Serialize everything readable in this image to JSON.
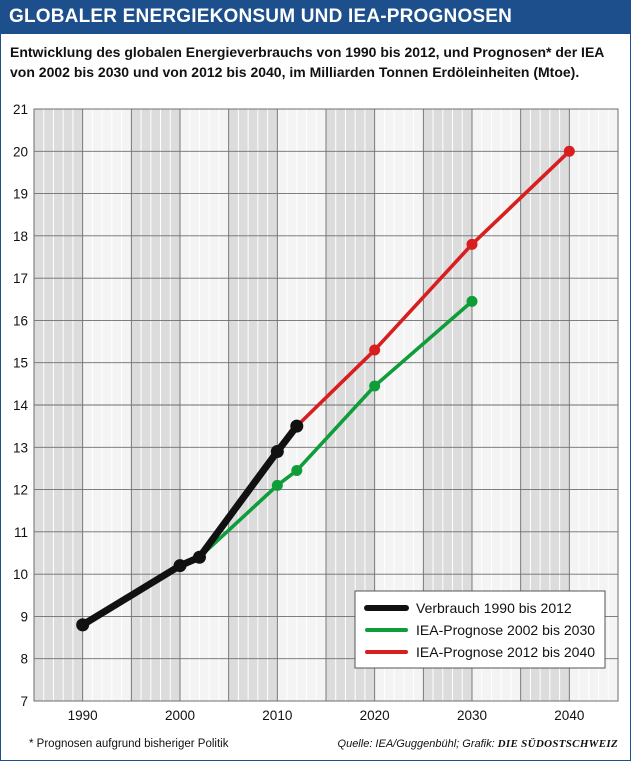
{
  "header": {
    "title": "GLOBALER ENERGIEKONSUM UND IEA-PROGNOSEN",
    "subtitle": "Entwicklung des globalen Energieverbrauchs von 1990 bis 2012, und Prognosen* der IEA von 2002 bis 2030 und von 2012 bis 2040, im Milliarden Tonnen Erdöleinheiten (Mtoe)."
  },
  "footer": {
    "footnote": "* Prognosen aufgrund bisheriger Politik",
    "source": "Quelle: IEA/Guggenbühl; Grafik:",
    "source_brand": "DIE SÜDOSTSCHWEIZ"
  },
  "colors": {
    "header_bg": "#1c4f8c",
    "verbrauch": "#111111",
    "prognose_2002": "#0f9d3a",
    "prognose_2012": "#d81e1e",
    "band_dark": "#dcdcdc",
    "band_light": "#f4f4f4"
  },
  "chart_data": {
    "type": "line",
    "title": "",
    "xlabel": "",
    "ylabel": "",
    "xlim": [
      1985,
      2045
    ],
    "ylim": [
      7,
      21
    ],
    "x_ticks": [
      1990,
      2000,
      2010,
      2020,
      2030,
      2040
    ],
    "x_tick_labels": [
      "1990",
      "2000",
      "2010",
      "2020",
      "2030",
      "2040"
    ],
    "y_ticks": [
      7,
      8,
      9,
      10,
      11,
      12,
      13,
      14,
      15,
      16,
      17,
      18,
      19,
      20,
      21
    ],
    "y_tick_labels": [
      "7",
      "8",
      "9",
      "10",
      "11",
      "12",
      "13",
      "14",
      "15",
      "16",
      "17",
      "18",
      "19",
      "20",
      "21"
    ],
    "grid": true,
    "legend_position": "bottom-right",
    "series": [
      {
        "name": "Verbrauch 1990 bis 2012",
        "color": "#111111",
        "x": [
          1990,
          2000,
          2002,
          2010,
          2012
        ],
        "y": [
          8.8,
          10.2,
          10.4,
          12.9,
          13.5
        ]
      },
      {
        "name": "IEA-Prognose 2002 bis 2030",
        "color": "#0f9d3a",
        "x": [
          2002,
          2010,
          2012,
          2020,
          2030
        ],
        "y": [
          10.4,
          12.1,
          12.45,
          14.45,
          16.45
        ]
      },
      {
        "name": "IEA-Prognose 2012 bis 2040",
        "color": "#d81e1e",
        "x": [
          2012,
          2020,
          2030,
          2040
        ],
        "y": [
          13.5,
          15.3,
          17.8,
          20.0
        ]
      }
    ]
  }
}
